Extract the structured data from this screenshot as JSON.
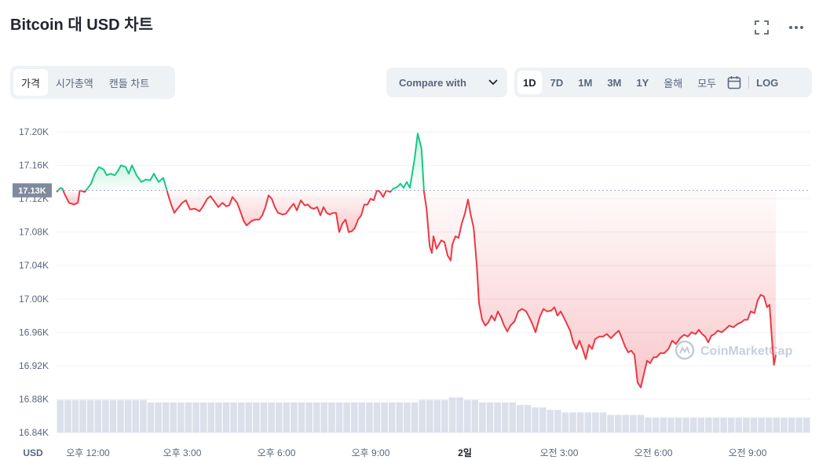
{
  "header": {
    "title": "Bitcoin 대 USD 차트"
  },
  "tabs": [
    {
      "label": "가격",
      "active": true
    },
    {
      "label": "시가총액",
      "active": false
    },
    {
      "label": "캔들 차트",
      "active": false
    }
  ],
  "compare": {
    "label": "Compare with"
  },
  "ranges": [
    {
      "label": "1D",
      "active": true
    },
    {
      "label": "7D",
      "active": false
    },
    {
      "label": "1M",
      "active": false
    },
    {
      "label": "3M",
      "active": false
    },
    {
      "label": "1Y",
      "active": false
    },
    {
      "label": "올해",
      "active": false
    },
    {
      "label": "모두",
      "active": false
    }
  ],
  "log_label": "LOG",
  "icons": {
    "fullscreen": "fullscreen-icon",
    "more": "more-options-icon",
    "calendar": "calendar-icon",
    "chevron": "chevron-down-icon"
  },
  "colors": {
    "up": "#16c784",
    "down": "#ea3943",
    "volume": "#cfd6e4"
  },
  "chart_data": {
    "type": "area",
    "currency_label": "USD",
    "y_ticks": [
      "17.20K",
      "17.16K",
      "17.12K",
      "17.08K",
      "17.04K",
      "17.00K",
      "16.96K",
      "16.92K",
      "16.88K",
      "16.84K"
    ],
    "y_values": [
      17200,
      17160,
      17120,
      17080,
      17040,
      17000,
      16960,
      16920,
      16880,
      16840
    ],
    "ylim": [
      16840,
      17200
    ],
    "x_ticks": [
      {
        "label": "오후 12:00",
        "bold": false,
        "hour": 1.0
      },
      {
        "label": "오후 3:00",
        "bold": false,
        "hour": 4.0
      },
      {
        "label": "오후 6:00",
        "bold": false,
        "hour": 7.0
      },
      {
        "label": "오후 9:00",
        "bold": false,
        "hour": 10.0
      },
      {
        "label": "2일",
        "bold": true,
        "hour": 13.0
      },
      {
        "label": "오전 3:00",
        "bold": false,
        "hour": 16.0
      },
      {
        "label": "오전 6:00",
        "bold": false,
        "hour": 19.0
      },
      {
        "label": "오전 9:00",
        "bold": false,
        "hour": 22.0
      }
    ],
    "xlim": [
      0,
      24
    ],
    "baseline_value": 17130,
    "baseline_label": "17.13K",
    "watermark": "CoinMarketCap",
    "price_series": [
      [
        0.0,
        17128
      ],
      [
        0.13,
        17133
      ],
      [
        0.19,
        17132
      ],
      [
        0.25,
        17126
      ],
      [
        0.4,
        17115
      ],
      [
        0.55,
        17113
      ],
      [
        0.68,
        17115
      ],
      [
        0.74,
        17130
      ],
      [
        0.9,
        17128
      ],
      [
        1.0,
        17133
      ],
      [
        1.1,
        17138
      ],
      [
        1.22,
        17150
      ],
      [
        1.35,
        17158
      ],
      [
        1.5,
        17155
      ],
      [
        1.6,
        17148
      ],
      [
        1.72,
        17150
      ],
      [
        1.85,
        17148
      ],
      [
        1.95,
        17153
      ],
      [
        2.05,
        17160
      ],
      [
        2.2,
        17158
      ],
      [
        2.3,
        17150
      ],
      [
        2.4,
        17160
      ],
      [
        2.55,
        17148
      ],
      [
        2.7,
        17140
      ],
      [
        2.85,
        17143
      ],
      [
        2.98,
        17142
      ],
      [
        3.1,
        17150
      ],
      [
        3.25,
        17140
      ],
      [
        3.4,
        17145
      ],
      [
        3.55,
        17125
      ],
      [
        3.65,
        17113
      ],
      [
        3.75,
        17103
      ],
      [
        3.85,
        17108
      ],
      [
        4.0,
        17115
      ],
      [
        4.12,
        17118
      ],
      [
        4.25,
        17107
      ],
      [
        4.4,
        17108
      ],
      [
        4.55,
        17105
      ],
      [
        4.65,
        17110
      ],
      [
        4.8,
        17120
      ],
      [
        4.9,
        17123
      ],
      [
        5.0,
        17118
      ],
      [
        5.15,
        17110
      ],
      [
        5.28,
        17115
      ],
      [
        5.4,
        17111
      ],
      [
        5.5,
        17112
      ],
      [
        5.6,
        17122
      ],
      [
        5.75,
        17115
      ],
      [
        5.85,
        17105
      ],
      [
        5.95,
        17094
      ],
      [
        6.05,
        17088
      ],
      [
        6.2,
        17093
      ],
      [
        6.32,
        17095
      ],
      [
        6.45,
        17095
      ],
      [
        6.55,
        17100
      ],
      [
        6.65,
        17110
      ],
      [
        6.75,
        17124
      ],
      [
        6.85,
        17120
      ],
      [
        6.95,
        17110
      ],
      [
        7.05,
        17103
      ],
      [
        7.2,
        17101
      ],
      [
        7.3,
        17102
      ],
      [
        7.42,
        17108
      ],
      [
        7.55,
        17114
      ],
      [
        7.65,
        17106
      ],
      [
        7.78,
        17118
      ],
      [
        7.9,
        17112
      ],
      [
        8.0,
        17113
      ],
      [
        8.1,
        17109
      ],
      [
        8.2,
        17108
      ],
      [
        8.3,
        17110
      ],
      [
        8.4,
        17100
      ],
      [
        8.5,
        17110
      ],
      [
        8.6,
        17103
      ],
      [
        8.7,
        17101
      ],
      [
        8.8,
        17103
      ],
      [
        8.9,
        17103
      ],
      [
        9.0,
        17080
      ],
      [
        9.1,
        17090
      ],
      [
        9.2,
        17095
      ],
      [
        9.3,
        17080
      ],
      [
        9.4,
        17081
      ],
      [
        9.5,
        17085
      ],
      [
        9.6,
        17095
      ],
      [
        9.7,
        17100
      ],
      [
        9.8,
        17113
      ],
      [
        9.9,
        17113
      ],
      [
        10.0,
        17120
      ],
      [
        10.1,
        17118
      ],
      [
        10.2,
        17130
      ],
      [
        10.3,
        17128
      ],
      [
        10.4,
        17122
      ],
      [
        10.5,
        17130
      ],
      [
        10.62,
        17128
      ],
      [
        10.72,
        17132
      ],
      [
        10.85,
        17134
      ],
      [
        10.95,
        17138
      ],
      [
        11.05,
        17133
      ],
      [
        11.15,
        17140
      ],
      [
        11.25,
        17133
      ],
      [
        11.4,
        17168
      ],
      [
        11.5,
        17198
      ],
      [
        11.62,
        17180
      ],
      [
        11.7,
        17128
      ],
      [
        11.78,
        17108
      ],
      [
        11.88,
        17063
      ],
      [
        11.95,
        17055
      ],
      [
        12.0,
        17075
      ],
      [
        12.1,
        17060
      ],
      [
        12.25,
        17070
      ],
      [
        12.35,
        17068
      ],
      [
        12.45,
        17052
      ],
      [
        12.55,
        17046
      ],
      [
        12.6,
        17065
      ],
      [
        12.7,
        17075
      ],
      [
        12.8,
        17073
      ],
      [
        12.9,
        17090
      ],
      [
        13.0,
        17102
      ],
      [
        13.1,
        17119
      ],
      [
        13.18,
        17102
      ],
      [
        13.28,
        17085
      ],
      [
        13.38,
        17040
      ],
      [
        13.45,
        16995
      ],
      [
        13.55,
        16975
      ],
      [
        13.65,
        16968
      ],
      [
        13.75,
        16972
      ],
      [
        13.85,
        16980
      ],
      [
        13.95,
        16974
      ],
      [
        14.05,
        16985
      ],
      [
        14.15,
        16978
      ],
      [
        14.25,
        16968
      ],
      [
        14.35,
        16961
      ],
      [
        14.45,
        16968
      ],
      [
        14.58,
        16973
      ],
      [
        14.7,
        16985
      ],
      [
        14.82,
        16988
      ],
      [
        14.95,
        16985
      ],
      [
        15.05,
        16978
      ],
      [
        15.15,
        16970
      ],
      [
        15.25,
        16960
      ],
      [
        15.38,
        16978
      ],
      [
        15.5,
        16988
      ],
      [
        15.62,
        16985
      ],
      [
        15.75,
        16986
      ],
      [
        15.85,
        16990
      ],
      [
        15.95,
        16980
      ],
      [
        16.05,
        16985
      ],
      [
        16.15,
        16978
      ],
      [
        16.25,
        16970
      ],
      [
        16.35,
        16962
      ],
      [
        16.45,
        16948
      ],
      [
        16.55,
        16940
      ],
      [
        16.65,
        16950
      ],
      [
        16.75,
        16940
      ],
      [
        16.85,
        16928
      ],
      [
        16.95,
        16945
      ],
      [
        17.05,
        16940
      ],
      [
        17.15,
        16952
      ],
      [
        17.28,
        16955
      ],
      [
        17.4,
        16955
      ],
      [
        17.52,
        16958
      ],
      [
        17.65,
        16953
      ],
      [
        17.78,
        16958
      ],
      [
        17.9,
        16962
      ],
      [
        18.0,
        16953
      ],
      [
        18.1,
        16943
      ],
      [
        18.2,
        16936
      ],
      [
        18.3,
        16938
      ],
      [
        18.4,
        16933
      ],
      [
        18.5,
        16900
      ],
      [
        18.6,
        16894
      ],
      [
        18.7,
        16910
      ],
      [
        18.8,
        16926
      ],
      [
        18.9,
        16923
      ],
      [
        19.0,
        16930
      ],
      [
        19.1,
        16930
      ],
      [
        19.22,
        16935
      ],
      [
        19.35,
        16935
      ],
      [
        19.48,
        16940
      ],
      [
        19.6,
        16950
      ],
      [
        19.72,
        16946
      ],
      [
        19.85,
        16953
      ],
      [
        19.98,
        16957
      ],
      [
        20.1,
        16955
      ],
      [
        20.22,
        16960
      ],
      [
        20.35,
        16958
      ],
      [
        20.45,
        16963
      ],
      [
        20.55,
        16958
      ],
      [
        20.65,
        16955
      ],
      [
        20.75,
        16948
      ],
      [
        20.85,
        16956
      ],
      [
        20.95,
        16958
      ],
      [
        21.05,
        16962
      ],
      [
        21.18,
        16960
      ],
      [
        21.3,
        16964
      ],
      [
        21.42,
        16968
      ],
      [
        21.55,
        16966
      ],
      [
        21.68,
        16970
      ],
      [
        21.8,
        16972
      ],
      [
        21.9,
        16975
      ],
      [
        22.0,
        16975
      ],
      [
        22.1,
        16985
      ],
      [
        22.22,
        16983
      ],
      [
        22.32,
        16998
      ],
      [
        22.42,
        17005
      ],
      [
        22.52,
        17003
      ],
      [
        22.62,
        16990
      ],
      [
        22.7,
        16993
      ],
      [
        22.78,
        16950
      ],
      [
        22.84,
        16921
      ],
      [
        22.9,
        16933
      ]
    ],
    "volume_series": [
      13,
      13,
      13,
      13,
      13,
      13,
      13,
      13,
      13,
      13,
      13,
      13,
      12,
      12,
      12,
      12,
      12,
      12,
      12,
      12,
      12,
      12,
      12,
      12,
      12,
      12,
      12,
      12,
      12,
      12,
      12,
      12,
      12,
      12,
      12,
      12,
      12,
      12,
      12,
      12,
      12,
      12,
      12,
      12,
      12,
      12,
      12,
      12,
      13,
      13,
      13,
      13,
      14,
      14,
      13,
      13,
      12,
      12,
      12,
      12,
      12,
      11,
      11,
      10,
      10,
      9,
      9,
      8,
      8,
      8,
      8,
      8,
      8,
      7,
      7,
      7,
      7,
      7,
      6,
      6,
      6,
      6,
      6,
      6,
      6,
      6,
      6,
      6,
      6,
      6,
      6,
      6,
      6,
      6,
      6,
      6,
      6,
      6,
      6,
      6
    ]
  }
}
